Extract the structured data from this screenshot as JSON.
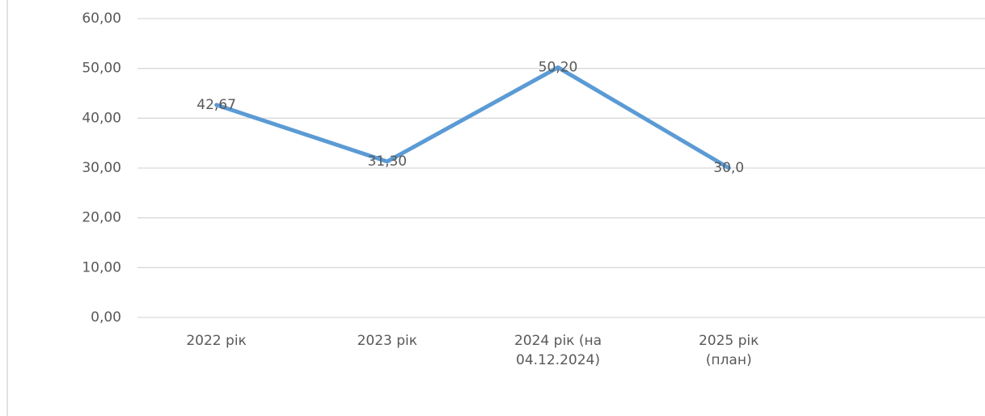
{
  "chart_data": {
    "type": "line",
    "categories": [
      "2022 рік",
      "2023 рік",
      "2024 рік (на 04.12.2024)",
      "2025 рік (план)",
      null
    ],
    "series": [
      {
        "color": "#5b9bd5",
        "values": [
          42.67,
          31.3,
          50.2,
          30.0,
          null
        ],
        "value_labels": [
          "42,67",
          "31,30",
          "50,20",
          "30,0",
          null
        ]
      }
    ],
    "ylim": [
      0,
      60
    ],
    "yticks": [
      {
        "value": 0,
        "label": "0,00"
      },
      {
        "value": 10,
        "label": "10,00"
      },
      {
        "value": 20,
        "label": "20,00"
      },
      {
        "value": 30,
        "label": "30,00"
      },
      {
        "value": 40,
        "label": "40,00"
      },
      {
        "value": 50,
        "label": "50,00"
      },
      {
        "value": 60,
        "label": "60,00"
      }
    ],
    "grid": true
  }
}
